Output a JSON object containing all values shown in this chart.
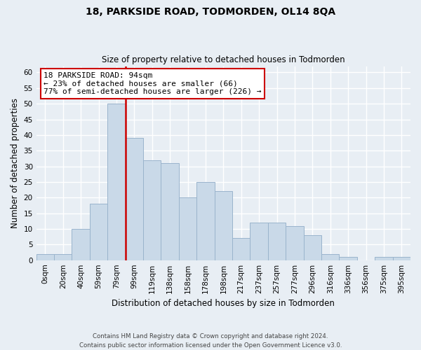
{
  "title": "18, PARKSIDE ROAD, TODMORDEN, OL14 8QA",
  "subtitle": "Size of property relative to detached houses in Todmorden",
  "xlabel": "Distribution of detached houses by size in Todmorden",
  "ylabel": "Number of detached properties",
  "bar_labels": [
    "0sqm",
    "20sqm",
    "40sqm",
    "59sqm",
    "79sqm",
    "99sqm",
    "119sqm",
    "138sqm",
    "158sqm",
    "178sqm",
    "198sqm",
    "217sqm",
    "237sqm",
    "257sqm",
    "277sqm",
    "296sqm",
    "316sqm",
    "336sqm",
    "356sqm",
    "375sqm",
    "395sqm"
  ],
  "bar_values": [
    2,
    2,
    10,
    18,
    50,
    39,
    32,
    31,
    20,
    25,
    22,
    7,
    12,
    12,
    11,
    8,
    2,
    1,
    0,
    1,
    1
  ],
  "bar_color": "#c9d9e8",
  "bar_edge_color": "#9ab4cc",
  "ylim": [
    0,
    62
  ],
  "yticks": [
    0,
    5,
    10,
    15,
    20,
    25,
    30,
    35,
    40,
    45,
    50,
    55,
    60
  ],
  "vline_index": 4,
  "vline_color": "#cc0000",
  "annotation_text": "18 PARKSIDE ROAD: 94sqm\n← 23% of detached houses are smaller (66)\n77% of semi-detached houses are larger (226) →",
  "annotation_box_facecolor": "#ffffff",
  "annotation_box_edgecolor": "#cc0000",
  "footer_text": "Contains HM Land Registry data © Crown copyright and database right 2024.\nContains public sector information licensed under the Open Government Licence v3.0.",
  "background_color": "#e8eef4",
  "plot_background": "#e8eef4",
  "grid_color": "#ffffff",
  "title_fontsize": 10,
  "subtitle_fontsize": 8.5,
  "axis_label_fontsize": 8.5,
  "tick_fontsize": 7.5,
  "annotation_fontsize": 8
}
